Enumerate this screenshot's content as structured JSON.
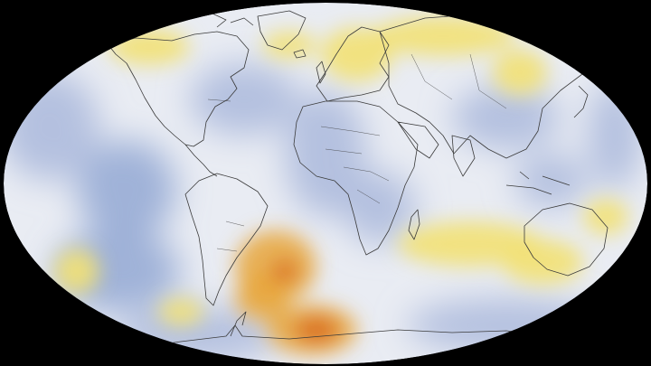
{
  "map": {
    "projection": "robinson",
    "background_color": "#000000",
    "ocean_base_color": "#e9ecf3",
    "cool_color": "#aab9dc",
    "strong_cool_color": "#93a8d3",
    "warm_color": "#f2e173",
    "hot_color": "#e8a63a",
    "very_hot_color": "#d96b22",
    "coastline_color": "#3b3b3b"
  },
  "regions": [
    {
      "name": "alaska-yukon-warm",
      "type": "warm"
    },
    {
      "name": "northern-europe-warm",
      "type": "warm"
    },
    {
      "name": "siberia-warm",
      "type": "warm"
    },
    {
      "name": "south-atlantic-warm",
      "type": "hot"
    },
    {
      "name": "southern-ocean-hot",
      "type": "very-hot"
    },
    {
      "name": "indian-ocean-warm",
      "type": "warm"
    },
    {
      "name": "australia-warm",
      "type": "warm"
    },
    {
      "name": "north-pacific-cool",
      "type": "cool"
    },
    {
      "name": "north-atlantic-cool",
      "type": "cool"
    },
    {
      "name": "east-pacific-cool",
      "type": "cool"
    },
    {
      "name": "south-pacific-cool",
      "type": "cool"
    }
  ]
}
